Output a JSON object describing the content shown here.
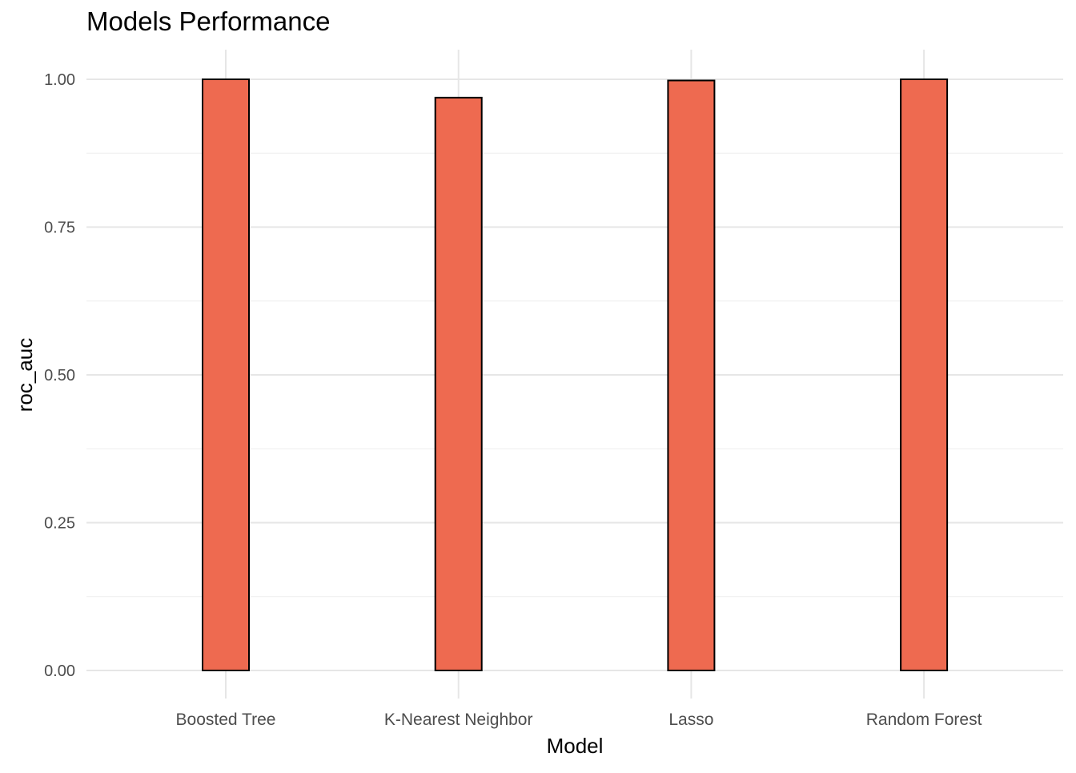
{
  "chart_data": {
    "type": "bar",
    "title": "Models Performance",
    "xlabel": "Model",
    "ylabel": "roc_auc",
    "categories": [
      "Boosted Tree",
      "K-Nearest Neighbor",
      "Lasso",
      "Random Forest"
    ],
    "values": [
      1.0,
      0.969,
      0.998,
      1.0
    ],
    "ylim": [
      0,
      1
    ],
    "yticks": [
      "0.00",
      "0.25",
      "0.50",
      "0.75",
      "1.00"
    ],
    "grid": true,
    "bar_color": "#EE6A50",
    "bar_outline_color": "#000000",
    "legend": "none"
  }
}
